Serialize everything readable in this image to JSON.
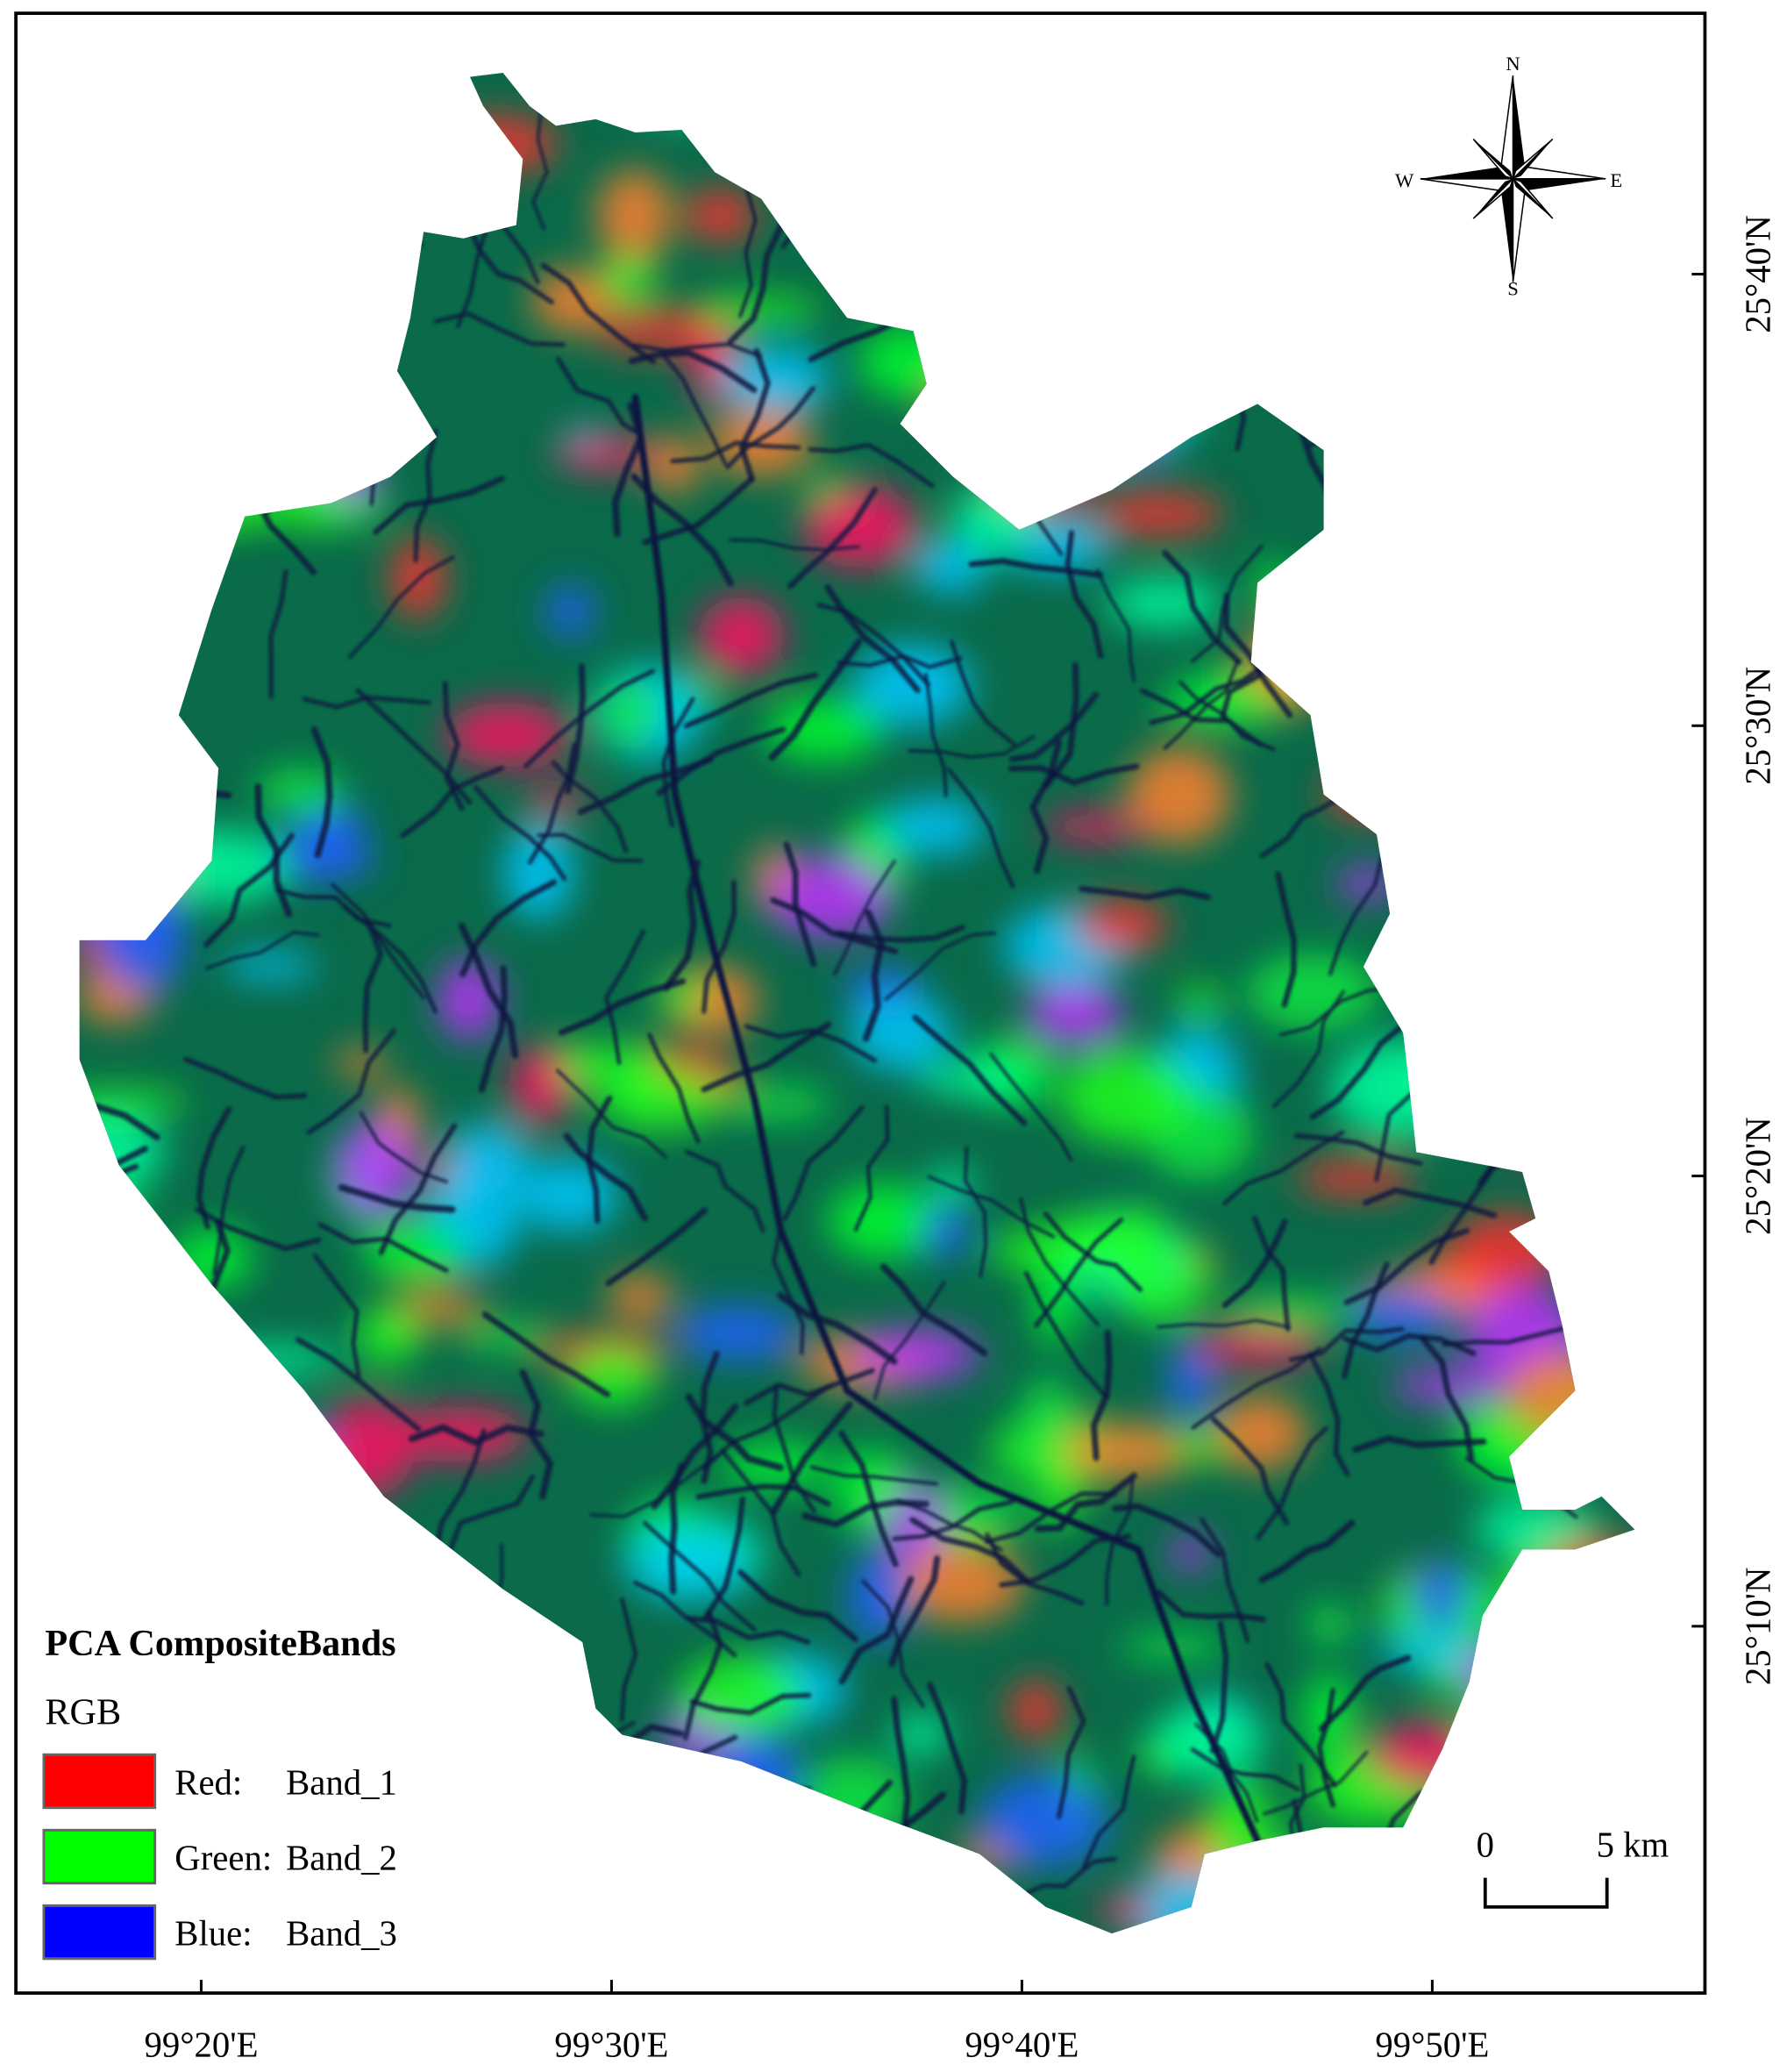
{
  "legend": {
    "title": "PCA CompositeBands",
    "subtitle": "RGB",
    "items": [
      {
        "channel": "Red:",
        "band": "Band_1",
        "color": "#ff0000"
      },
      {
        "channel": "Green:",
        "band": "Band_2",
        "color": "#00ff00"
      },
      {
        "channel": "Blue:",
        "band": "Band_3",
        "color": "#0000ff"
      }
    ]
  },
  "axes": {
    "x_labels": [
      "99°20'E",
      "99°30'E",
      "99°40'E",
      "99°50'E"
    ],
    "y_labels": [
      "25°40'N",
      "25°30'N",
      "25°20'N",
      "25°10'N"
    ]
  },
  "north_arrow": {
    "n": "N",
    "s": "S",
    "e": "E",
    "w": "W"
  },
  "scale_bar": {
    "start": "0",
    "end": "5 km"
  }
}
